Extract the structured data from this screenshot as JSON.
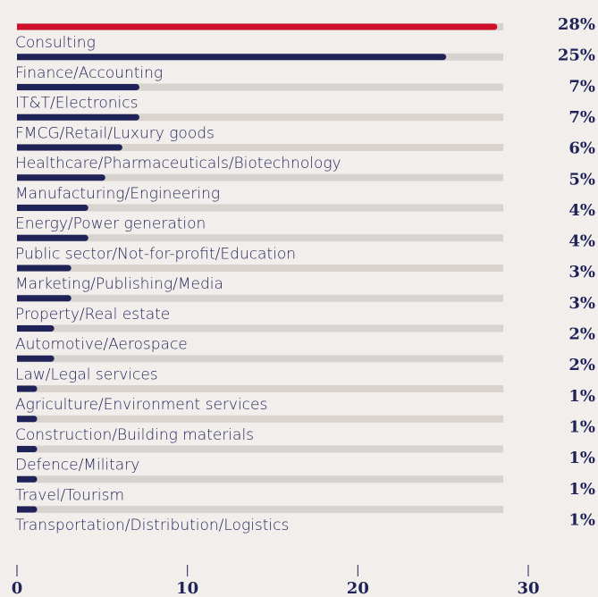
{
  "chart_data": {
    "type": "bar",
    "orientation": "horizontal",
    "categories": [
      "Consulting",
      "Finance/Accounting",
      "IT&T/Electronics",
      "FMCG/Retail/Luxury goods",
      "Healthcare/Pharmaceuticals/Biotechnology",
      "Manufacturing/Engineering",
      "Energy/Power generation",
      "Public sector/Not-for-profit/Education",
      "Marketing/Publishing/Media",
      "Property/Real estate",
      "Automotive/Aerospace",
      "Law/Legal services",
      "Agriculture/Environment services",
      "Construction/Building materials",
      "Defence/Military",
      "Travel/Tourism",
      "Transportation/Distribution/Logistics"
    ],
    "values": [
      28,
      25,
      7,
      7,
      6,
      5,
      4,
      4,
      3,
      3,
      2,
      2,
      1,
      1,
      1,
      1,
      1
    ],
    "value_labels": [
      "28%",
      "25%",
      "7%",
      "7%",
      "6%",
      "5%",
      "4%",
      "4%",
      "3%",
      "3%",
      "2%",
      "2%",
      "1%",
      "1%",
      "1%",
      "1%",
      "1%"
    ],
    "colors": [
      "#d0102a",
      "#1f2358",
      "#1f2358",
      "#1f2358",
      "#1f2358",
      "#1f2358",
      "#1f2358",
      "#1f2358",
      "#1f2358",
      "#1f2358",
      "#1f2358",
      "#1f2358",
      "#1f2358",
      "#1f2358",
      "#1f2358",
      "#1f2358",
      "#1f2358"
    ],
    "xlim": [
      0,
      30
    ],
    "xticks": [
      0,
      10,
      20,
      30
    ]
  }
}
